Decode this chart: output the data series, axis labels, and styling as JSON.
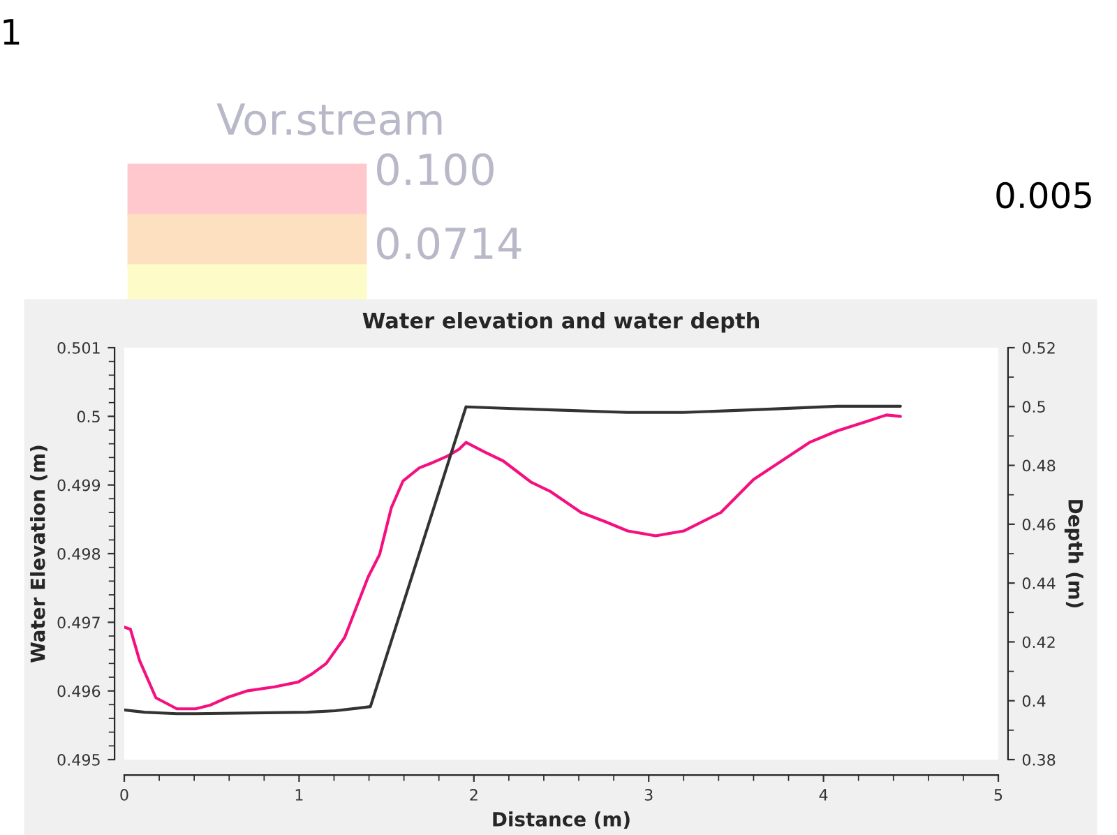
{
  "chart_data": {
    "type": "line",
    "title": "Water elevation and water depth",
    "xlabel": "Distance (m)",
    "ylabel": "Water Elevation (m)",
    "y2label": "Depth (m)",
    "xlim": [
      0,
      5
    ],
    "xticks": [
      0,
      1,
      2,
      3,
      4,
      5
    ],
    "ylim": [
      0.495,
      0.501
    ],
    "yticks": [
      0.495,
      0.496,
      0.497,
      0.498,
      0.499,
      {
        "value": 0.5,
        "label": "0.5"
      },
      0.501
    ],
    "y2lim": [
      0.38,
      0.52
    ],
    "y2ticks": [
      0.38,
      {
        "value": 0.4,
        "label": "0.4"
      },
      0.42,
      0.44,
      0.46,
      0.48,
      {
        "value": 0.5,
        "label": "0.5"
      },
      0.52
    ],
    "grid": false,
    "legend": false,
    "marker": "none",
    "line_style": "solid",
    "annotations": [
      "1",
      "Vor.stream",
      "0.100",
      "0.0714",
      "0.005"
    ],
    "series": [
      {
        "color": "#f5107f",
        "x": [
          0,
          0.035,
          0.088,
          0.181,
          0.301,
          0.408,
          0.488,
          0.595,
          0.701,
          0.861,
          0.995,
          1.075,
          1.155,
          1.261,
          1.395,
          1.461,
          1.528,
          1.595,
          1.688,
          1.768,
          1.848,
          1.915,
          1.955,
          2.061,
          2.168,
          2.328,
          2.435,
          2.613,
          2.747,
          2.88,
          3.04,
          3.2,
          3.413,
          3.6,
          3.76,
          3.92,
          4.08,
          4.24,
          4.36,
          4.44
        ],
        "values": [
          0.49693,
          0.4969,
          0.49644,
          0.4959,
          0.49574,
          0.49574,
          0.49579,
          0.49591,
          0.496,
          0.49606,
          0.49613,
          0.49625,
          0.4964,
          0.49678,
          0.49766,
          0.49799,
          0.49867,
          0.49906,
          0.49925,
          0.49933,
          0.49942,
          0.49952,
          0.49962,
          0.49948,
          0.49935,
          0.49904,
          0.49891,
          0.4986,
          0.49847,
          0.49833,
          0.49826,
          0.49833,
          0.4986,
          0.49908,
          0.49935,
          0.49962,
          0.49979,
          0.49992,
          0.50002,
          0.5
        ]
      },
      {
        "color": "#333333",
        "axis": "y2",
        "x": [
          0,
          0.115,
          0.301,
          0.408,
          1.048,
          1.208,
          1.408,
          1.955,
          2.221,
          2.48,
          2.88,
          3.2,
          3.68,
          4.08,
          4.44
        ],
        "values": [
          0.3969,
          0.3961,
          0.3956,
          0.3956,
          0.3961,
          0.3966,
          0.398,
          0.4999,
          0.4993,
          0.4988,
          0.498,
          0.498,
          0.4991,
          0.5001,
          0.5001
        ]
      }
    ]
  }
}
